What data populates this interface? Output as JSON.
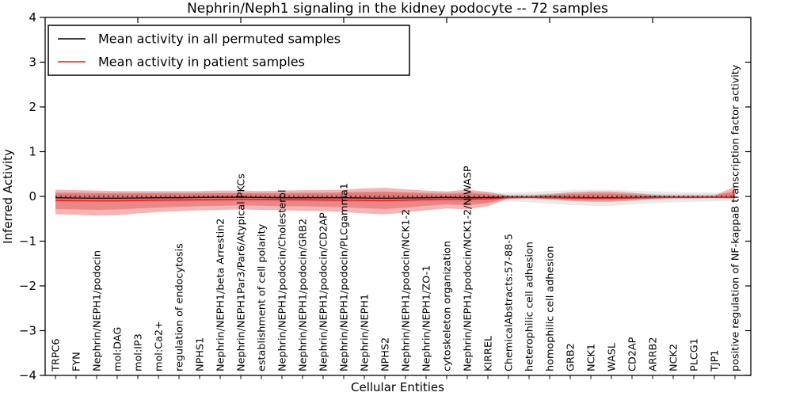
{
  "title": "Nephrin/Neph1 signaling in the kidney podocyte -- 72 samples",
  "legend": {
    "items": [
      {
        "label": "Mean activity in all permuted samples",
        "color": "#000000"
      },
      {
        "label": "Mean activity in patient samples",
        "color": "#e81c1c"
      }
    ]
  },
  "axes": {
    "xlabel": "Cellular Entities",
    "ylabel": "Inferred Activity"
  },
  "colors": {
    "permuted_band": "#aaaaaa",
    "patient_band": "#e03c3c",
    "permuted_mean_line": "#000000",
    "patient_mean_line": "#e81c1c",
    "zero_reference_line": "#000000",
    "spine": "#000000"
  },
  "chart_data": {
    "type": "area",
    "title": "Nephrin/Neph1 signaling in the kidney podocyte -- 72 samples",
    "xlabel": "Cellular Entities",
    "ylabel": "Inferred Activity",
    "ylim": [
      -4,
      4
    ],
    "yticks": [
      4,
      3,
      2,
      1,
      0,
      -1,
      -2,
      -3,
      -4
    ],
    "x_major_tick_values": [
      5,
      10,
      15,
      20,
      25,
      30
    ],
    "grid": false,
    "legend_position": "upper left",
    "categories": [
      "TRPC6",
      "FYN",
      "Nephrin/NEPH1/podocin",
      "mol:DAG",
      "mol:IP3",
      "mol:Ca2+",
      "regulation of endocytosis",
      "NPHS1",
      "Nephrin/NEPH1/beta Arrestin2",
      "Nephrin/NEPH1Par3/Par6/Atypical PKCs",
      "establishment of cell polarity",
      "Nephrin/NEPH1/podocin/Cholesterol",
      "Nephrin/NEPH1/podocin/GRB2",
      "Nephrin/NEPH1/podocin/CD2AP",
      "Nephrin/NEPH1/podocin/PLCgamma1",
      "Nephrin/NEPH1",
      "NPHS2",
      "Nephrin/NEPH1/podocin/NCK1-2",
      "Nephrin/NEPH1/ZO-1",
      "cytoskeleton organization",
      "Nephrin/NEPH1/podocin/NCK1-2/N-WASP",
      "KIRREL",
      "ChemicalAbstracts:57-88-5",
      "heterophilic cell adhesion",
      "homophilic cell adhesion",
      "GRB2",
      "NCK1",
      "WASL",
      "CD2AP",
      "ARRB2",
      "NCK2",
      "PLCG1",
      "TJP1",
      "positive regulation of NF-kappaB transcription factor activity"
    ],
    "series": [
      {
        "name": "Patient samples range (outer band)",
        "type": "band",
        "color": "#e03c3c",
        "hi": [
          0.15,
          0.14,
          0.13,
          0.12,
          0.12,
          0.12,
          0.12,
          0.12,
          0.13,
          0.13,
          0.12,
          0.13,
          0.14,
          0.14,
          0.15,
          0.18,
          0.19,
          0.16,
          0.13,
          0.11,
          0.15,
          0.1,
          0.02,
          0.02,
          0.05,
          0.09,
          0.11,
          0.11,
          0.08,
          0.04,
          0.02,
          0.02,
          0.02,
          0.22
        ],
        "lo": [
          -0.4,
          -0.41,
          -0.43,
          -0.42,
          -0.38,
          -0.35,
          -0.33,
          -0.31,
          -0.3,
          -0.29,
          -0.3,
          -0.31,
          -0.32,
          -0.33,
          -0.35,
          -0.38,
          -0.4,
          -0.36,
          -0.31,
          -0.27,
          -0.29,
          -0.22,
          -0.04,
          -0.03,
          -0.06,
          -0.1,
          -0.12,
          -0.12,
          -0.09,
          -0.05,
          -0.03,
          -0.03,
          -0.03,
          -0.05
        ]
      },
      {
        "name": "Patient samples range (inner band)",
        "type": "band",
        "color": "#e03c3c",
        "hi": [
          0.08,
          0.08,
          0.07,
          0.07,
          0.07,
          0.07,
          0.07,
          0.07,
          0.07,
          0.07,
          0.07,
          0.07,
          0.08,
          0.08,
          0.09,
          0.1,
          0.11,
          0.09,
          0.07,
          0.06,
          0.08,
          0.05,
          0.01,
          0.01,
          0.03,
          0.05,
          0.06,
          0.06,
          0.04,
          0.02,
          0.01,
          0.01,
          0.01,
          0.12
        ],
        "lo": [
          -0.28,
          -0.29,
          -0.3,
          -0.29,
          -0.27,
          -0.25,
          -0.23,
          -0.22,
          -0.21,
          -0.2,
          -0.21,
          -0.22,
          -0.22,
          -0.23,
          -0.24,
          -0.26,
          -0.28,
          -0.25,
          -0.21,
          -0.18,
          -0.2,
          -0.15,
          -0.02,
          -0.02,
          -0.04,
          -0.06,
          -0.07,
          -0.07,
          -0.05,
          -0.03,
          -0.02,
          -0.02,
          -0.02,
          -0.03
        ]
      },
      {
        "name": "Permuted samples range (outer band)",
        "type": "band",
        "color": "#aaaaaa",
        "hi": [
          0.09,
          0.09,
          0.09,
          0.09,
          0.09,
          0.09,
          0.09,
          0.09,
          0.09,
          0.09,
          0.09,
          0.09,
          0.09,
          0.09,
          0.09,
          0.09,
          0.09,
          0.09,
          0.09,
          0.09,
          0.1,
          0.1,
          0.08,
          0.1,
          0.12,
          0.14,
          0.15,
          0.15,
          0.13,
          0.11,
          0.1,
          0.09,
          0.09,
          0.08
        ],
        "lo": [
          -0.12,
          -0.12,
          -0.12,
          -0.12,
          -0.12,
          -0.12,
          -0.12,
          -0.12,
          -0.12,
          -0.12,
          -0.12,
          -0.12,
          -0.12,
          -0.12,
          -0.12,
          -0.12,
          -0.12,
          -0.12,
          -0.12,
          -0.12,
          -0.13,
          -0.13,
          -0.11,
          -0.13,
          -0.16,
          -0.19,
          -0.21,
          -0.21,
          -0.18,
          -0.15,
          -0.13,
          -0.12,
          -0.11,
          -0.1
        ]
      },
      {
        "name": "Mean activity in all permuted samples",
        "type": "line",
        "color": "#000000",
        "values": [
          -0.03,
          -0.035,
          -0.04,
          -0.04,
          -0.035,
          -0.03,
          -0.03,
          -0.025,
          -0.02,
          -0.02,
          -0.025,
          -0.03,
          -0.03,
          -0.03,
          -0.03,
          -0.035,
          -0.04,
          -0.035,
          -0.03,
          -0.025,
          -0.03,
          -0.025,
          -0.02,
          -0.02,
          -0.02,
          -0.025,
          -0.03,
          -0.03,
          -0.025,
          -0.02,
          -0.02,
          -0.02,
          -0.02,
          -0.02
        ]
      },
      {
        "name": "Mean activity in patient samples",
        "type": "line",
        "color": "#e81c1c",
        "values": [
          -0.09,
          -0.095,
          -0.1,
          -0.1,
          -0.09,
          -0.085,
          -0.08,
          -0.075,
          -0.07,
          -0.065,
          -0.065,
          -0.07,
          -0.075,
          -0.08,
          -0.085,
          -0.09,
          -0.095,
          -0.085,
          -0.07,
          -0.06,
          -0.065,
          -0.05,
          -0.03,
          -0.025,
          -0.03,
          -0.035,
          -0.04,
          -0.04,
          -0.035,
          -0.03,
          -0.025,
          -0.025,
          -0.02,
          -0.02
        ]
      },
      {
        "name": "Zero reference",
        "type": "dotted-line",
        "color": "#000000",
        "value": 0
      }
    ]
  }
}
